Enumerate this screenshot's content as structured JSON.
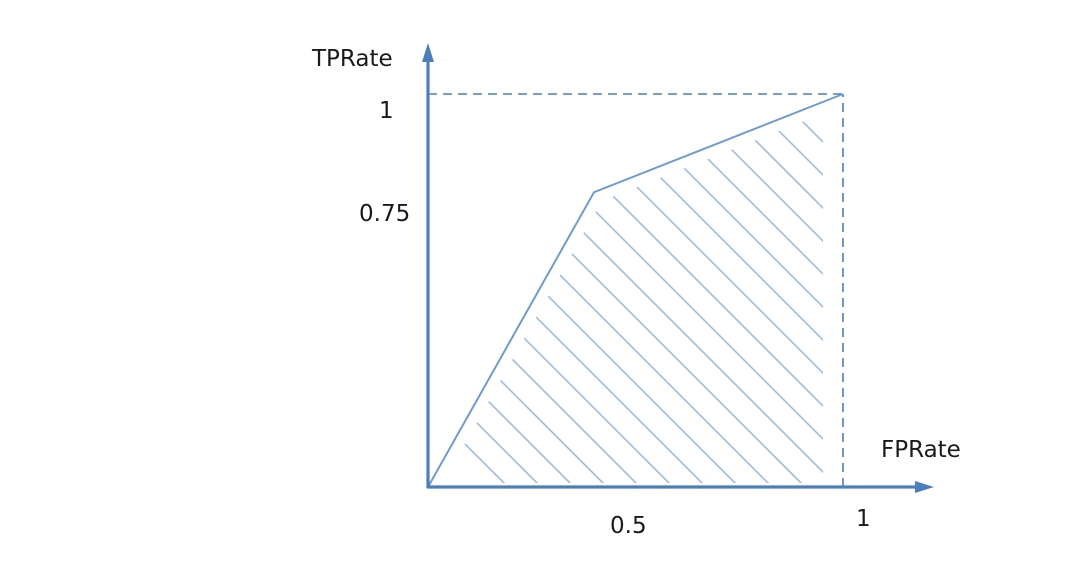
{
  "chart_data": {
    "type": "line",
    "title": "",
    "xlabel": "FPRate",
    "ylabel": "TPRate",
    "xlim": [
      0,
      1
    ],
    "ylim": [
      0,
      1
    ],
    "x_ticks": [
      "0.5",
      "1"
    ],
    "y_ticks": [
      "0.75",
      "1"
    ],
    "grid": false,
    "legend": "none",
    "series": [
      {
        "x": [
          0,
          0.4,
          1
        ],
        "y": [
          0,
          0.75,
          1
        ]
      }
    ],
    "reference_lines": [
      {
        "x": [
          0,
          1
        ],
        "y": [
          1,
          1
        ],
        "style": "dashed"
      },
      {
        "x": [
          1,
          1
        ],
        "y": [
          0,
          1
        ],
        "style": "dashed"
      }
    ],
    "shaded_area": "area under the curve (hatched)"
  },
  "colors": {
    "axis": "#4a7ebf",
    "curve": "#6f9bd3",
    "hatch": "#9dbbe3",
    "dash": "#4a7ebf"
  }
}
